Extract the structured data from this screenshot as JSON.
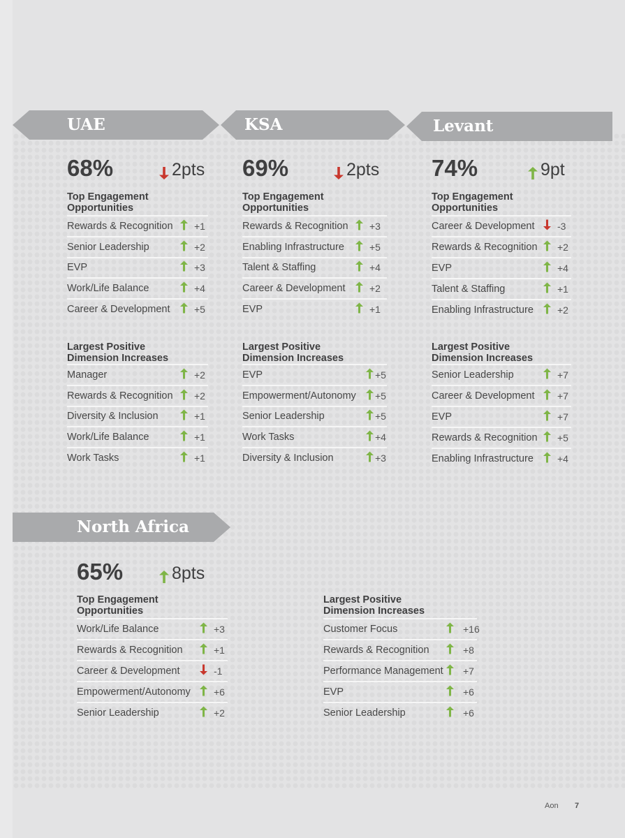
{
  "colors": {
    "up": "#7fb547",
    "down": "#c8372d",
    "banner": "#a9aaac"
  },
  "regions": {
    "uae": {
      "name": "UAE",
      "percent": "68%",
      "change": "2pts",
      "change_dir": "down",
      "opps_title": "Top Engagement\nOpportunities",
      "opps": [
        {
          "label": "Rewards & Recognition",
          "dir": "up",
          "value": "+1"
        },
        {
          "label": "Senior Leadership",
          "dir": "up",
          "value": "+2"
        },
        {
          "label": "EVP",
          "dir": "up",
          "value": "+3"
        },
        {
          "label": "Work/Life Balance",
          "dir": "up",
          "value": "+4"
        },
        {
          "label": "Career & Development",
          "dir": "up",
          "value": "+5"
        }
      ],
      "incr_title": "Largest Positive\nDimension Increases",
      "incr": [
        {
          "label": "Manager",
          "dir": "up",
          "value": "+2"
        },
        {
          "label": "Rewards & Recognition",
          "dir": "up",
          "value": "+2"
        },
        {
          "label": "Diversity & Inclusion",
          "dir": "up",
          "value": "+1"
        },
        {
          "label": "Work/Life Balance",
          "dir": "up",
          "value": "+1"
        },
        {
          "label": "Work Tasks",
          "dir": "up",
          "value": "+1"
        }
      ]
    },
    "ksa": {
      "name": "KSA",
      "percent": "69%",
      "change": "2pts",
      "change_dir": "down",
      "opps_title": "Top Engagement\nOpportunities",
      "opps": [
        {
          "label": "Rewards & Recognition",
          "dir": "up",
          "value": "+3"
        },
        {
          "label": "Enabling Infrastructure",
          "dir": "up",
          "value": "+5"
        },
        {
          "label": "Talent & Staffing",
          "dir": "up",
          "value": "+4"
        },
        {
          "label": "Career & Development",
          "dir": "up",
          "value": "+2"
        },
        {
          "label": "EVP",
          "dir": "up",
          "value": "+1"
        }
      ],
      "incr_title": "Largest Positive\nDimension Increases",
      "incr": [
        {
          "label": "EVP",
          "dir": "up",
          "value": "+5"
        },
        {
          "label": "Empowerment/Autonomy",
          "dir": "up",
          "value": "+5"
        },
        {
          "label": "Senior Leadership",
          "dir": "up",
          "value": "+5"
        },
        {
          "label": "Work Tasks",
          "dir": "up",
          "value": "+4"
        },
        {
          "label": "Diversity & Inclusion",
          "dir": "up",
          "value": "+3"
        }
      ]
    },
    "levant": {
      "name": "Levant",
      "percent": "74%",
      "change": "9pt",
      "change_dir": "up",
      "opps_title": "Top Engagement\nOpportunities",
      "opps": [
        {
          "label": "Career & Development",
          "dir": "down",
          "value": "-3"
        },
        {
          "label": "Rewards & Recognition",
          "dir": "up",
          "value": "+2"
        },
        {
          "label": "EVP",
          "dir": "up",
          "value": "+4"
        },
        {
          "label": "Talent & Staffing",
          "dir": "up",
          "value": "+1"
        },
        {
          "label": "Enabling Infrastructure",
          "dir": "up",
          "value": "+2"
        }
      ],
      "incr_title": "Largest Positive\nDimension Increases",
      "incr": [
        {
          "label": "Senior Leadership",
          "dir": "up",
          "value": "+7"
        },
        {
          "label": "Career & Development",
          "dir": "up",
          "value": "+7"
        },
        {
          "label": "EVP",
          "dir": "up",
          "value": "+7"
        },
        {
          "label": "Rewards & Recognition",
          "dir": "up",
          "value": "+5"
        },
        {
          "label": "Enabling Infrastructure",
          "dir": "up",
          "value": "+4"
        }
      ]
    },
    "north_africa": {
      "name": "North Africa",
      "percent": "65%",
      "change": "8pts",
      "change_dir": "up",
      "opps_title": "Top Engagement\nOpportunities",
      "opps": [
        {
          "label": "Work/Life Balance",
          "dir": "up",
          "value": "+3"
        },
        {
          "label": "Rewards & Recognition",
          "dir": "up",
          "value": "+1"
        },
        {
          "label": "Career & Development",
          "dir": "down",
          "value": "-1"
        },
        {
          "label": "Empowerment/Autonomy",
          "dir": "up",
          "value": "+6"
        },
        {
          "label": "Senior Leadership",
          "dir": "up",
          "value": "+2"
        }
      ],
      "incr_title": "Largest Positive\nDimension Increases",
      "incr": [
        {
          "label": "Customer Focus",
          "dir": "up",
          "value": "+16"
        },
        {
          "label": "Rewards & Recognition",
          "dir": "up",
          "value": "+8"
        },
        {
          "label": "Performance Management",
          "dir": "up",
          "value": "+7"
        },
        {
          "label": "EVP",
          "dir": "up",
          "value": "+6"
        },
        {
          "label": "Senior Leadership",
          "dir": "up",
          "value": "+6"
        }
      ]
    }
  },
  "footer": {
    "brand": "Aon",
    "page_number": "7"
  }
}
